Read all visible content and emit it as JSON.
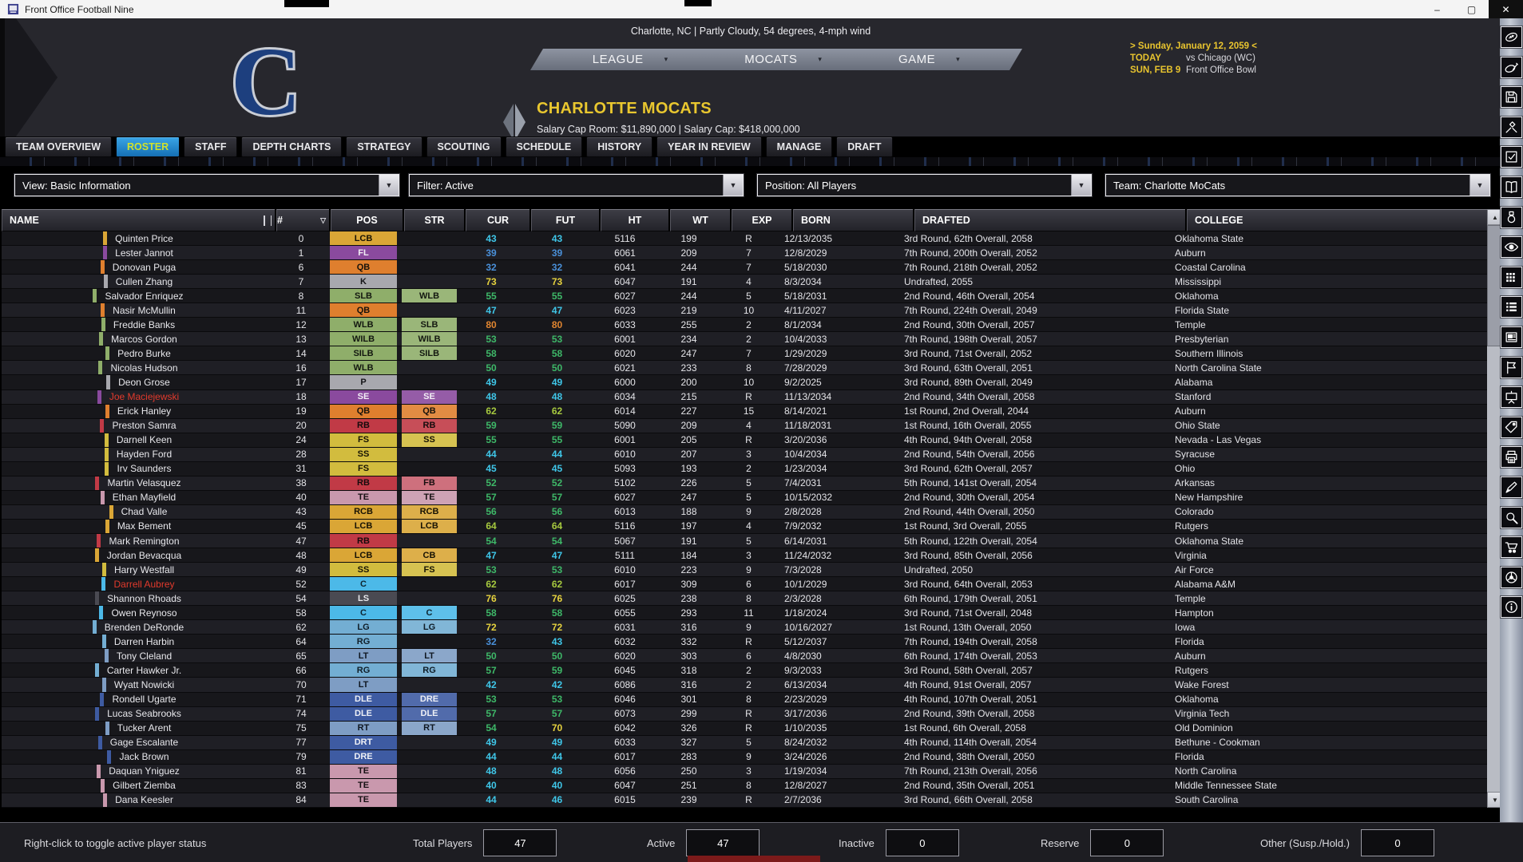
{
  "window": {
    "title": "Front Office Football Nine",
    "controls": [
      "minimize",
      "maximize",
      "close"
    ]
  },
  "header": {
    "weather": "Charlotte, NC | Partly Cloudy, 54 degrees, 4-mph wind",
    "logo_letter": "C",
    "nav": [
      {
        "label": "LEAGUE"
      },
      {
        "label": "MOCATS"
      },
      {
        "label": "GAME"
      }
    ],
    "team_name": "CHARLOTTE MOCATS",
    "salary_line": "Salary Cap Room: $11,890,000   |   Salary Cap: $418,000,000",
    "date_line": "> Sunday, January 12, 2059 <",
    "schedule": [
      {
        "when": "TODAY",
        "what": "vs Chicago (WC)"
      },
      {
        "when": "SUN, FEB 9",
        "what": "Front Office Bowl"
      }
    ]
  },
  "tabs": [
    {
      "label": "TEAM OVERVIEW",
      "active": false
    },
    {
      "label": "ROSTER",
      "active": true
    },
    {
      "label": "STAFF",
      "active": false
    },
    {
      "label": "DEPTH CHARTS",
      "active": false
    },
    {
      "label": "STRATEGY",
      "active": false
    },
    {
      "label": "SCOUTING",
      "active": false
    },
    {
      "label": "SCHEDULE",
      "active": false
    },
    {
      "label": "HISTORY",
      "active": false
    },
    {
      "label": "YEAR IN REVIEW",
      "active": false
    },
    {
      "label": "MANAGE",
      "active": false
    },
    {
      "label": "DRAFT",
      "active": false
    }
  ],
  "filters": [
    {
      "name": "view",
      "label": "View: Basic Information"
    },
    {
      "name": "filter",
      "label": "Filter: Active"
    },
    {
      "name": "position",
      "label": "Position: All Players"
    },
    {
      "name": "team",
      "label": "Team: Charlotte MoCats"
    }
  ],
  "table": {
    "columns": [
      "NAME",
      "#",
      "POS",
      "STR",
      "CUR",
      "FUT",
      "HT",
      "WT",
      "EXP",
      "BORN",
      "DRAFTED",
      "COLLEGE"
    ],
    "rows": [
      {
        "name": "Quinten Price",
        "red": false,
        "num": "0",
        "pos": "LCB",
        "str": "",
        "cur": "43",
        "fut": "43",
        "ht": "5116",
        "wt": "199",
        "exp": "R",
        "born": "12/13/2035",
        "drafted": "3rd Round, 62th Overall, 2058",
        "college": "Oklahoma State"
      },
      {
        "name": "Lester Jannot",
        "red": false,
        "num": "1",
        "pos": "FL",
        "str": "",
        "cur": "39",
        "fut": "39",
        "ht": "6061",
        "wt": "209",
        "exp": "7",
        "born": "12/8/2029",
        "drafted": "7th Round, 200th Overall, 2052",
        "college": "Auburn"
      },
      {
        "name": "Donovan Puga",
        "red": false,
        "num": "6",
        "pos": "QB",
        "str": "",
        "cur": "32",
        "fut": "32",
        "ht": "6041",
        "wt": "244",
        "exp": "7",
        "born": "5/18/2030",
        "drafted": "7th Round, 218th Overall, 2052",
        "college": "Coastal Carolina"
      },
      {
        "name": "Cullen Zhang",
        "red": false,
        "num": "7",
        "pos": "K",
        "str": "",
        "cur": "73",
        "fut": "73",
        "ht": "6047",
        "wt": "191",
        "exp": "4",
        "born": "8/3/2034",
        "drafted": "Undrafted, 2055",
        "college": "Mississippi"
      },
      {
        "name": "Salvador Enriquez",
        "red": false,
        "num": "8",
        "pos": "SLB",
        "str": "WLB",
        "cur": "55",
        "fut": "55",
        "ht": "6027",
        "wt": "244",
        "exp": "5",
        "born": "5/18/2031",
        "drafted": "2nd Round, 46th Overall, 2054",
        "college": "Oklahoma"
      },
      {
        "name": "Nasir McMullin",
        "red": false,
        "num": "11",
        "pos": "QB",
        "str": "",
        "cur": "47",
        "fut": "47",
        "ht": "6023",
        "wt": "219",
        "exp": "10",
        "born": "4/11/2027",
        "drafted": "7th Round, 224th Overall, 2049",
        "college": "Florida State"
      },
      {
        "name": "Freddie Banks",
        "red": false,
        "num": "12",
        "pos": "WLB",
        "str": "SLB",
        "cur": "80",
        "fut": "80",
        "ht": "6033",
        "wt": "255",
        "exp": "2",
        "born": "8/1/2034",
        "drafted": "2nd Round, 30th Overall, 2057",
        "college": "Temple"
      },
      {
        "name": "Marcos Gordon",
        "red": false,
        "num": "13",
        "pos": "WILB",
        "str": "WILB",
        "cur": "53",
        "fut": "53",
        "ht": "6001",
        "wt": "234",
        "exp": "2",
        "born": "10/4/2033",
        "drafted": "7th Round, 198th Overall, 2057",
        "college": "Presbyterian"
      },
      {
        "name": "Pedro Burke",
        "red": false,
        "num": "14",
        "pos": "SILB",
        "str": "SILB",
        "cur": "58",
        "fut": "58",
        "ht": "6020",
        "wt": "247",
        "exp": "7",
        "born": "1/29/2029",
        "drafted": "3rd Round, 71st Overall, 2052",
        "college": "Southern Illinois"
      },
      {
        "name": "Nicolas Hudson",
        "red": false,
        "num": "16",
        "pos": "WLB",
        "str": "",
        "cur": "50",
        "fut": "50",
        "ht": "6021",
        "wt": "233",
        "exp": "8",
        "born": "7/28/2029",
        "drafted": "3rd Round, 63th Overall, 2051",
        "college": "North Carolina State"
      },
      {
        "name": "Deon Grose",
        "red": false,
        "num": "17",
        "pos": "P",
        "str": "",
        "cur": "49",
        "fut": "49",
        "ht": "6000",
        "wt": "200",
        "exp": "10",
        "born": "9/2/2025",
        "drafted": "3rd Round, 89th Overall, 2049",
        "college": "Alabama"
      },
      {
        "name": "Joe Maciejewski",
        "red": true,
        "num": "18",
        "pos": "SE",
        "str": "SE",
        "cur": "48",
        "fut": "48",
        "ht": "6034",
        "wt": "215",
        "exp": "R",
        "born": "11/13/2034",
        "drafted": "2nd Round, 34th Overall, 2058",
        "college": "Stanford"
      },
      {
        "name": "Erick Hanley",
        "red": false,
        "num": "19",
        "pos": "QB",
        "str": "QB",
        "cur": "62",
        "fut": "62",
        "ht": "6014",
        "wt": "227",
        "exp": "15",
        "born": "8/14/2021",
        "drafted": "1st Round, 2nd Overall, 2044",
        "college": "Auburn"
      },
      {
        "name": "Preston Samra",
        "red": false,
        "num": "20",
        "pos": "RB",
        "str": "RB",
        "cur": "59",
        "fut": "59",
        "ht": "5090",
        "wt": "209",
        "exp": "4",
        "born": "11/18/2031",
        "drafted": "1st Round, 16th Overall, 2055",
        "college": "Ohio State"
      },
      {
        "name": "Darnell Keen",
        "red": false,
        "num": "24",
        "pos": "FS",
        "str": "SS",
        "cur": "55",
        "fut": "55",
        "ht": "6001",
        "wt": "205",
        "exp": "R",
        "born": "3/20/2036",
        "drafted": "4th Round, 94th Overall, 2058",
        "college": "Nevada - Las Vegas"
      },
      {
        "name": "Hayden Ford",
        "red": false,
        "num": "28",
        "pos": "SS",
        "str": "",
        "cur": "44",
        "fut": "44",
        "ht": "6010",
        "wt": "207",
        "exp": "3",
        "born": "10/4/2034",
        "drafted": "2nd Round, 54th Overall, 2056",
        "college": "Syracuse"
      },
      {
        "name": "Irv Saunders",
        "red": false,
        "num": "31",
        "pos": "FS",
        "str": "",
        "cur": "45",
        "fut": "45",
        "ht": "5093",
        "wt": "193",
        "exp": "2",
        "born": "1/23/2034",
        "drafted": "3rd Round, 62th Overall, 2057",
        "college": "Ohio"
      },
      {
        "name": "Martin Velasquez",
        "red": false,
        "num": "38",
        "pos": "RB",
        "str": "FB",
        "cur": "52",
        "fut": "52",
        "ht": "5102",
        "wt": "226",
        "exp": "5",
        "born": "7/4/2031",
        "drafted": "5th Round, 141st Overall, 2054",
        "college": "Arkansas"
      },
      {
        "name": "Ethan Mayfield",
        "red": false,
        "num": "40",
        "pos": "TE",
        "str": "TE",
        "cur": "57",
        "fut": "57",
        "ht": "6027",
        "wt": "247",
        "exp": "5",
        "born": "10/15/2032",
        "drafted": "2nd Round, 30th Overall, 2054",
        "college": "New Hampshire"
      },
      {
        "name": "Chad Valle",
        "red": false,
        "num": "43",
        "pos": "RCB",
        "str": "RCB",
        "cur": "56",
        "fut": "56",
        "ht": "6013",
        "wt": "188",
        "exp": "9",
        "born": "2/8/2028",
        "drafted": "2nd Round, 44th Overall, 2050",
        "college": "Colorado"
      },
      {
        "name": "Max Bement",
        "red": false,
        "num": "45",
        "pos": "LCB",
        "str": "LCB",
        "cur": "64",
        "fut": "64",
        "ht": "5116",
        "wt": "197",
        "exp": "4",
        "born": "7/9/2032",
        "drafted": "1st Round, 3rd Overall, 2055",
        "college": "Rutgers"
      },
      {
        "name": "Mark Remington",
        "red": false,
        "num": "47",
        "pos": "RB",
        "str": "",
        "cur": "54",
        "fut": "54",
        "ht": "5067",
        "wt": "191",
        "exp": "5",
        "born": "6/14/2031",
        "drafted": "5th Round, 122th Overall, 2054",
        "college": "Oklahoma State"
      },
      {
        "name": "Jordan Bevacqua",
        "red": false,
        "num": "48",
        "pos": "LCB",
        "str": "CB",
        "cur": "47",
        "fut": "47",
        "ht": "5111",
        "wt": "184",
        "exp": "3",
        "born": "11/24/2032",
        "drafted": "3rd Round, 85th Overall, 2056",
        "college": "Virginia"
      },
      {
        "name": "Harry Westfall",
        "red": false,
        "num": "49",
        "pos": "SS",
        "str": "FS",
        "cur": "53",
        "fut": "53",
        "ht": "6010",
        "wt": "223",
        "exp": "9",
        "born": "7/3/2028",
        "drafted": "Undrafted, 2050",
        "college": "Air Force"
      },
      {
        "name": "Darrell Aubrey",
        "red": true,
        "num": "52",
        "pos": "C",
        "str": "",
        "cur": "62",
        "fut": "62",
        "ht": "6017",
        "wt": "309",
        "exp": "6",
        "born": "10/1/2029",
        "drafted": "3rd Round, 64th Overall, 2053",
        "college": "Alabama A&M"
      },
      {
        "name": "Shannon Rhoads",
        "red": false,
        "num": "54",
        "pos": "LS",
        "str": "",
        "cur": "76",
        "fut": "76",
        "ht": "6025",
        "wt": "238",
        "exp": "8",
        "born": "2/3/2028",
        "drafted": "6th Round, 179th Overall, 2051",
        "college": "Temple"
      },
      {
        "name": "Owen Reynoso",
        "red": false,
        "num": "58",
        "pos": "C",
        "str": "C",
        "cur": "58",
        "fut": "58",
        "ht": "6055",
        "wt": "293",
        "exp": "11",
        "born": "1/18/2024",
        "drafted": "3rd Round, 71st Overall, 2048",
        "college": "Hampton"
      },
      {
        "name": "Brenden DeRonde",
        "red": false,
        "num": "62",
        "pos": "LG",
        "str": "LG",
        "cur": "72",
        "fut": "72",
        "ht": "6031",
        "wt": "316",
        "exp": "9",
        "born": "10/16/2027",
        "drafted": "1st Round, 13th Overall, 2050",
        "college": "Iowa"
      },
      {
        "name": "Darren Harbin",
        "red": false,
        "num": "64",
        "pos": "RG",
        "str": "",
        "cur": "32",
        "fut": "43",
        "ht": "6032",
        "wt": "332",
        "exp": "R",
        "born": "5/12/2037",
        "drafted": "7th Round, 194th Overall, 2058",
        "college": "Florida"
      },
      {
        "name": "Tony Cleland",
        "red": false,
        "num": "65",
        "pos": "LT",
        "str": "LT",
        "cur": "50",
        "fut": "50",
        "ht": "6020",
        "wt": "303",
        "exp": "6",
        "born": "4/8/2030",
        "drafted": "6th Round, 174th Overall, 2053",
        "college": "Auburn"
      },
      {
        "name": "Carter Hawker Jr.",
        "red": false,
        "num": "66",
        "pos": "RG",
        "str": "RG",
        "cur": "57",
        "fut": "59",
        "ht": "6045",
        "wt": "318",
        "exp": "2",
        "born": "9/3/2033",
        "drafted": "3rd Round, 58th Overall, 2057",
        "college": "Rutgers"
      },
      {
        "name": "Wyatt Nowicki",
        "red": false,
        "num": "70",
        "pos": "LT",
        "str": "",
        "cur": "42",
        "fut": "42",
        "ht": "6086",
        "wt": "316",
        "exp": "2",
        "born": "6/13/2034",
        "drafted": "4th Round, 91st Overall, 2057",
        "college": "Wake Forest"
      },
      {
        "name": "Rondell Ugarte",
        "red": false,
        "num": "71",
        "pos": "DLE",
        "str": "DRE",
        "cur": "53",
        "fut": "53",
        "ht": "6046",
        "wt": "301",
        "exp": "8",
        "born": "2/23/2029",
        "drafted": "4th Round, 107th Overall, 2051",
        "college": "Oklahoma"
      },
      {
        "name": "Lucas Seabrooks",
        "red": false,
        "num": "74",
        "pos": "DLE",
        "str": "DLE",
        "cur": "57",
        "fut": "57",
        "ht": "6073",
        "wt": "299",
        "exp": "R",
        "born": "3/17/2036",
        "drafted": "2nd Round, 39th Overall, 2058",
        "college": "Virginia Tech"
      },
      {
        "name": "Tucker Arent",
        "red": false,
        "num": "75",
        "pos": "RT",
        "str": "RT",
        "cur": "54",
        "fut": "70",
        "ht": "6042",
        "wt": "326",
        "exp": "R",
        "born": "1/10/2035",
        "drafted": "1st Round, 6th Overall, 2058",
        "college": "Old Dominion"
      },
      {
        "name": "Gage Escalante",
        "red": false,
        "num": "77",
        "pos": "DRT",
        "str": "",
        "cur": "49",
        "fut": "49",
        "ht": "6033",
        "wt": "327",
        "exp": "5",
        "born": "8/24/2032",
        "drafted": "4th Round, 114th Overall, 2054",
        "college": "Bethune - Cookman"
      },
      {
        "name": "Jack Brown",
        "red": false,
        "num": "79",
        "pos": "DRE",
        "str": "",
        "cur": "44",
        "fut": "44",
        "ht": "6017",
        "wt": "283",
        "exp": "9",
        "born": "3/24/2026",
        "drafted": "2nd Round, 38th Overall, 2050",
        "college": "Florida"
      },
      {
        "name": "Daquan Yniguez",
        "red": false,
        "num": "81",
        "pos": "TE",
        "str": "",
        "cur": "48",
        "fut": "48",
        "ht": "6056",
        "wt": "250",
        "exp": "3",
        "born": "1/19/2034",
        "drafted": "7th Round, 213th Overall, 2056",
        "college": "North Carolina"
      },
      {
        "name": "Gilbert Ziemba",
        "red": false,
        "num": "83",
        "pos": "TE",
        "str": "",
        "cur": "40",
        "fut": "40",
        "ht": "6047",
        "wt": "251",
        "exp": "8",
        "born": "12/8/2027",
        "drafted": "2nd Round, 35th Overall, 2051",
        "college": "Middle Tennessee State"
      },
      {
        "name": "Dana Keesler",
        "red": false,
        "num": "84",
        "pos": "TE",
        "str": "",
        "cur": "44",
        "fut": "46",
        "ht": "6015",
        "wt": "239",
        "exp": "R",
        "born": "2/7/2036",
        "drafted": "3rd Round, 66th Overall, 2058",
        "college": "South Carolina"
      }
    ]
  },
  "footer": {
    "hint": "Right-click to toggle active player status",
    "stats": [
      {
        "label": "Total Players",
        "value": "47"
      },
      {
        "label": "Active",
        "value": "47"
      },
      {
        "label": "Inactive",
        "value": "0"
      },
      {
        "label": "Reserve",
        "value": "0"
      },
      {
        "label": "Other (Susp./Hold.)",
        "value": "0"
      }
    ]
  },
  "sidebar": {
    "icons": [
      "football-roster",
      "football-sign",
      "save",
      "tools",
      "checklist",
      "playbook",
      "medal",
      "eye",
      "grid",
      "list",
      "news",
      "flag",
      "presentation",
      "tag",
      "printer",
      "pen",
      "search",
      "cart",
      "wheel",
      "info"
    ]
  },
  "colors": {
    "accent_yellow": "#e8c42e",
    "active_tab_blue": "#1f8ad0",
    "active_tab_text": "#cfe22e",
    "red_player": "#e23a2c",
    "ratings": {
      "under40": "#4a90d9",
      "forties": "#3fc6e8",
      "fifties": "#3eb868",
      "sixties": "#a6c93f",
      "seventies": "#e6d23e",
      "eighties": "#e08530"
    },
    "positions": {
      "QB": {
        "bg": "#df7f2e",
        "fg": "#17130c"
      },
      "RB": {
        "bg": "#c13a46",
        "fg": "#140b0c"
      },
      "FB": {
        "bg": "#c9606f",
        "fg": "#160d0e"
      },
      "SE": {
        "bg": "#8a4a9e",
        "fg": "#f2eef5"
      },
      "FL": {
        "bg": "#8a4a9e",
        "fg": "#f2eef5"
      },
      "TE": {
        "bg": "#c998ad",
        "fg": "#171114"
      },
      "C": {
        "bg": "#4cb9e8",
        "fg": "#0e2530"
      },
      "LG": {
        "bg": "#73aed3",
        "fg": "#101e28"
      },
      "RG": {
        "bg": "#73aed3",
        "fg": "#101e28"
      },
      "LT": {
        "bg": "#7e9dc4",
        "fg": "#101822"
      },
      "RT": {
        "bg": "#7e9dc4",
        "fg": "#101822"
      },
      "LS": {
        "bg": "#4a4a52",
        "fg": "#e8e8ec"
      },
      "K": {
        "bg": "#a8a8ae",
        "fg": "#151518"
      },
      "P": {
        "bg": "#a8a8ae",
        "fg": "#151518"
      },
      "SLB": {
        "bg": "#8fae6a",
        "fg": "#131710"
      },
      "WLB": {
        "bg": "#8fae6a",
        "fg": "#131710"
      },
      "WILB": {
        "bg": "#8fae6a",
        "fg": "#131710"
      },
      "SILB": {
        "bg": "#8fae6a",
        "fg": "#131710"
      },
      "LCB": {
        "bg": "#daa636",
        "fg": "#171204"
      },
      "RCB": {
        "bg": "#daa636",
        "fg": "#171204"
      },
      "CB": {
        "bg": "#daa636",
        "fg": "#171204"
      },
      "FS": {
        "bg": "#d2bc3e",
        "fg": "#171404"
      },
      "SS": {
        "bg": "#d2bc3e",
        "fg": "#171404"
      },
      "DLE": {
        "bg": "#3e5ba2",
        "fg": "#eef0f6"
      },
      "DRE": {
        "bg": "#3e5ba2",
        "fg": "#eef0f6"
      },
      "DRT": {
        "bg": "#3e5ba2",
        "fg": "#eef0f6"
      }
    }
  }
}
